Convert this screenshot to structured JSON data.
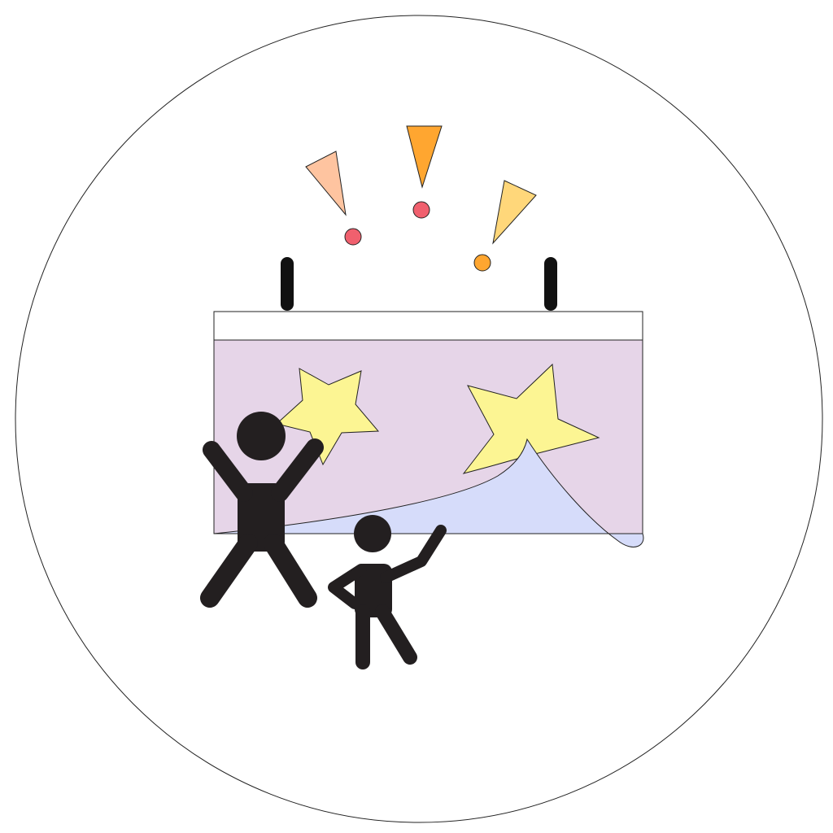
{
  "colors": {
    "background": "#ffffff",
    "outline": "#222222",
    "banner_background": "#e6d5e8",
    "banner_top_strip": "#ffffff",
    "peeled_layer": "#d6dcfa",
    "star_fill": "#fcf593",
    "figure_fill": "#231f20",
    "exclamation_left_triangle": "#fec4a0",
    "exclamation_left_dot": "#f0606e",
    "exclamation_center_triangle": "#ffa630",
    "exclamation_center_dot": "#f0606e",
    "exclamation_right_triangle": "#ffd77a",
    "exclamation_right_dot": "#ffa630"
  },
  "icons": {
    "frame": "circle-frame-icon",
    "banner": "banner-icon",
    "stars": "star-icon",
    "people": "person-icon",
    "exclamations": "exclamation-icon"
  }
}
